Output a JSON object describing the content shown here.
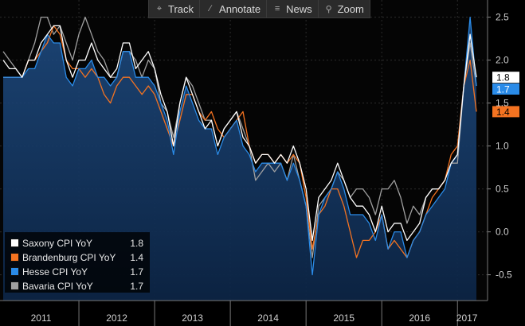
{
  "toolbar": {
    "track": "Track",
    "annotate": "Annotate",
    "news": "News",
    "zoom": "Zoom"
  },
  "chart_data": {
    "type": "line",
    "x_range": [
      "2011-01",
      "2017-02"
    ],
    "x_labels": [
      "2011",
      "2012",
      "2013",
      "2014",
      "2015",
      "2016",
      "2017"
    ],
    "ylim": [
      -0.8,
      2.7
    ],
    "y_ticks": [
      -0.5,
      0.0,
      0.5,
      1.0,
      1.5,
      2.0,
      2.5
    ],
    "y_axis_side": "right",
    "grid": true,
    "legend_position": "bottom-left",
    "series": [
      {
        "name": "Saxony CPI YoY",
        "color": "#ffffff",
        "last": "1.8",
        "values": [
          2.0,
          1.9,
          1.9,
          1.8,
          2.0,
          2.0,
          2.2,
          2.3,
          2.4,
          2.4,
          2.0,
          1.8,
          2.0,
          2.0,
          2.2,
          2.0,
          1.9,
          1.8,
          1.9,
          2.2,
          2.2,
          1.9,
          2.0,
          2.1,
          1.9,
          1.6,
          1.4,
          1.0,
          1.5,
          1.8,
          1.6,
          1.4,
          1.2,
          1.3,
          1.0,
          1.2,
          1.3,
          1.4,
          1.1,
          1.0,
          0.8,
          0.9,
          0.9,
          0.8,
          0.9,
          0.8,
          1.0,
          0.8,
          0.5,
          -0.1,
          0.4,
          0.5,
          0.6,
          0.8,
          0.6,
          0.4,
          0.3,
          0.3,
          0.2,
          0.0,
          0.3,
          0.0,
          0.1,
          0.1,
          -0.1,
          0.0,
          0.1,
          0.4,
          0.5,
          0.5,
          0.6,
          0.8,
          0.9,
          1.7,
          2.3,
          1.8
        ]
      },
      {
        "name": "Brandenburg CPI YoY",
        "color": "#f47321",
        "last": "1.4",
        "values": [
          1.8,
          1.8,
          1.8,
          1.8,
          2.0,
          2.0,
          2.1,
          2.2,
          2.4,
          2.3,
          2.0,
          1.9,
          1.9,
          1.8,
          1.9,
          1.8,
          1.6,
          1.5,
          1.7,
          1.8,
          1.8,
          1.7,
          1.6,
          1.7,
          1.6,
          1.4,
          1.2,
          1.0,
          1.3,
          1.6,
          1.6,
          1.4,
          1.3,
          1.4,
          1.2,
          1.1,
          1.2,
          1.3,
          1.4,
          1.0,
          0.8,
          0.9,
          0.9,
          0.8,
          0.9,
          0.8,
          0.9,
          0.8,
          0.4,
          -0.2,
          0.2,
          0.3,
          0.5,
          0.5,
          0.3,
          0.0,
          -0.3,
          -0.1,
          -0.1,
          0.0,
          0.2,
          -0.2,
          -0.1,
          -0.2,
          -0.3,
          -0.1,
          0.0,
          0.2,
          0.4,
          0.5,
          0.6,
          0.9,
          1.0,
          1.7,
          2.0,
          1.4
        ]
      },
      {
        "name": "Hesse CPI YoY",
        "color": "#2a8be8",
        "last": "1.7",
        "values": [
          1.8,
          1.8,
          1.8,
          1.8,
          1.9,
          1.9,
          2.1,
          2.3,
          2.2,
          2.2,
          1.8,
          1.7,
          1.9,
          1.9,
          2.0,
          1.8,
          1.8,
          1.7,
          1.8,
          2.1,
          2.1,
          1.8,
          1.8,
          1.8,
          1.7,
          1.5,
          1.3,
          0.9,
          1.4,
          1.7,
          1.5,
          1.3,
          1.2,
          1.2,
          0.9,
          1.1,
          1.2,
          1.3,
          1.0,
          0.9,
          0.7,
          0.8,
          0.8,
          0.8,
          0.8,
          0.6,
          0.8,
          0.6,
          0.3,
          -0.5,
          0.2,
          0.4,
          0.5,
          0.7,
          0.5,
          0.2,
          0.2,
          0.2,
          0.1,
          -0.1,
          0.2,
          -0.2,
          0.0,
          0.0,
          -0.3,
          -0.1,
          0.0,
          0.2,
          0.3,
          0.4,
          0.5,
          0.8,
          0.9,
          1.7,
          2.5,
          1.7
        ]
      },
      {
        "name": "Bavaria CPI YoY",
        "color": "#a0a0a0",
        "last": "1.7",
        "values": [
          2.1,
          2.0,
          1.9,
          1.8,
          2.0,
          2.2,
          2.5,
          2.5,
          2.3,
          2.4,
          2.2,
          2.0,
          2.3,
          2.5,
          2.3,
          2.1,
          2.0,
          1.8,
          1.8,
          2.1,
          2.1,
          2.0,
          1.8,
          2.0,
          1.9,
          1.5,
          1.4,
          1.1,
          1.5,
          1.8,
          1.7,
          1.5,
          1.3,
          1.3,
          1.0,
          1.2,
          1.3,
          1.4,
          1.2,
          1.0,
          0.6,
          0.7,
          0.8,
          0.7,
          0.8,
          0.6,
          0.9,
          0.6,
          0.3,
          -0.3,
          0.3,
          0.4,
          0.5,
          0.7,
          0.6,
          0.4,
          0.5,
          0.5,
          0.4,
          0.2,
          0.5,
          0.5,
          0.6,
          0.4,
          0.1,
          0.3,
          0.2,
          0.4,
          0.5,
          0.5,
          0.6,
          0.8,
          0.8,
          1.7,
          2.2,
          1.7
        ]
      }
    ]
  }
}
